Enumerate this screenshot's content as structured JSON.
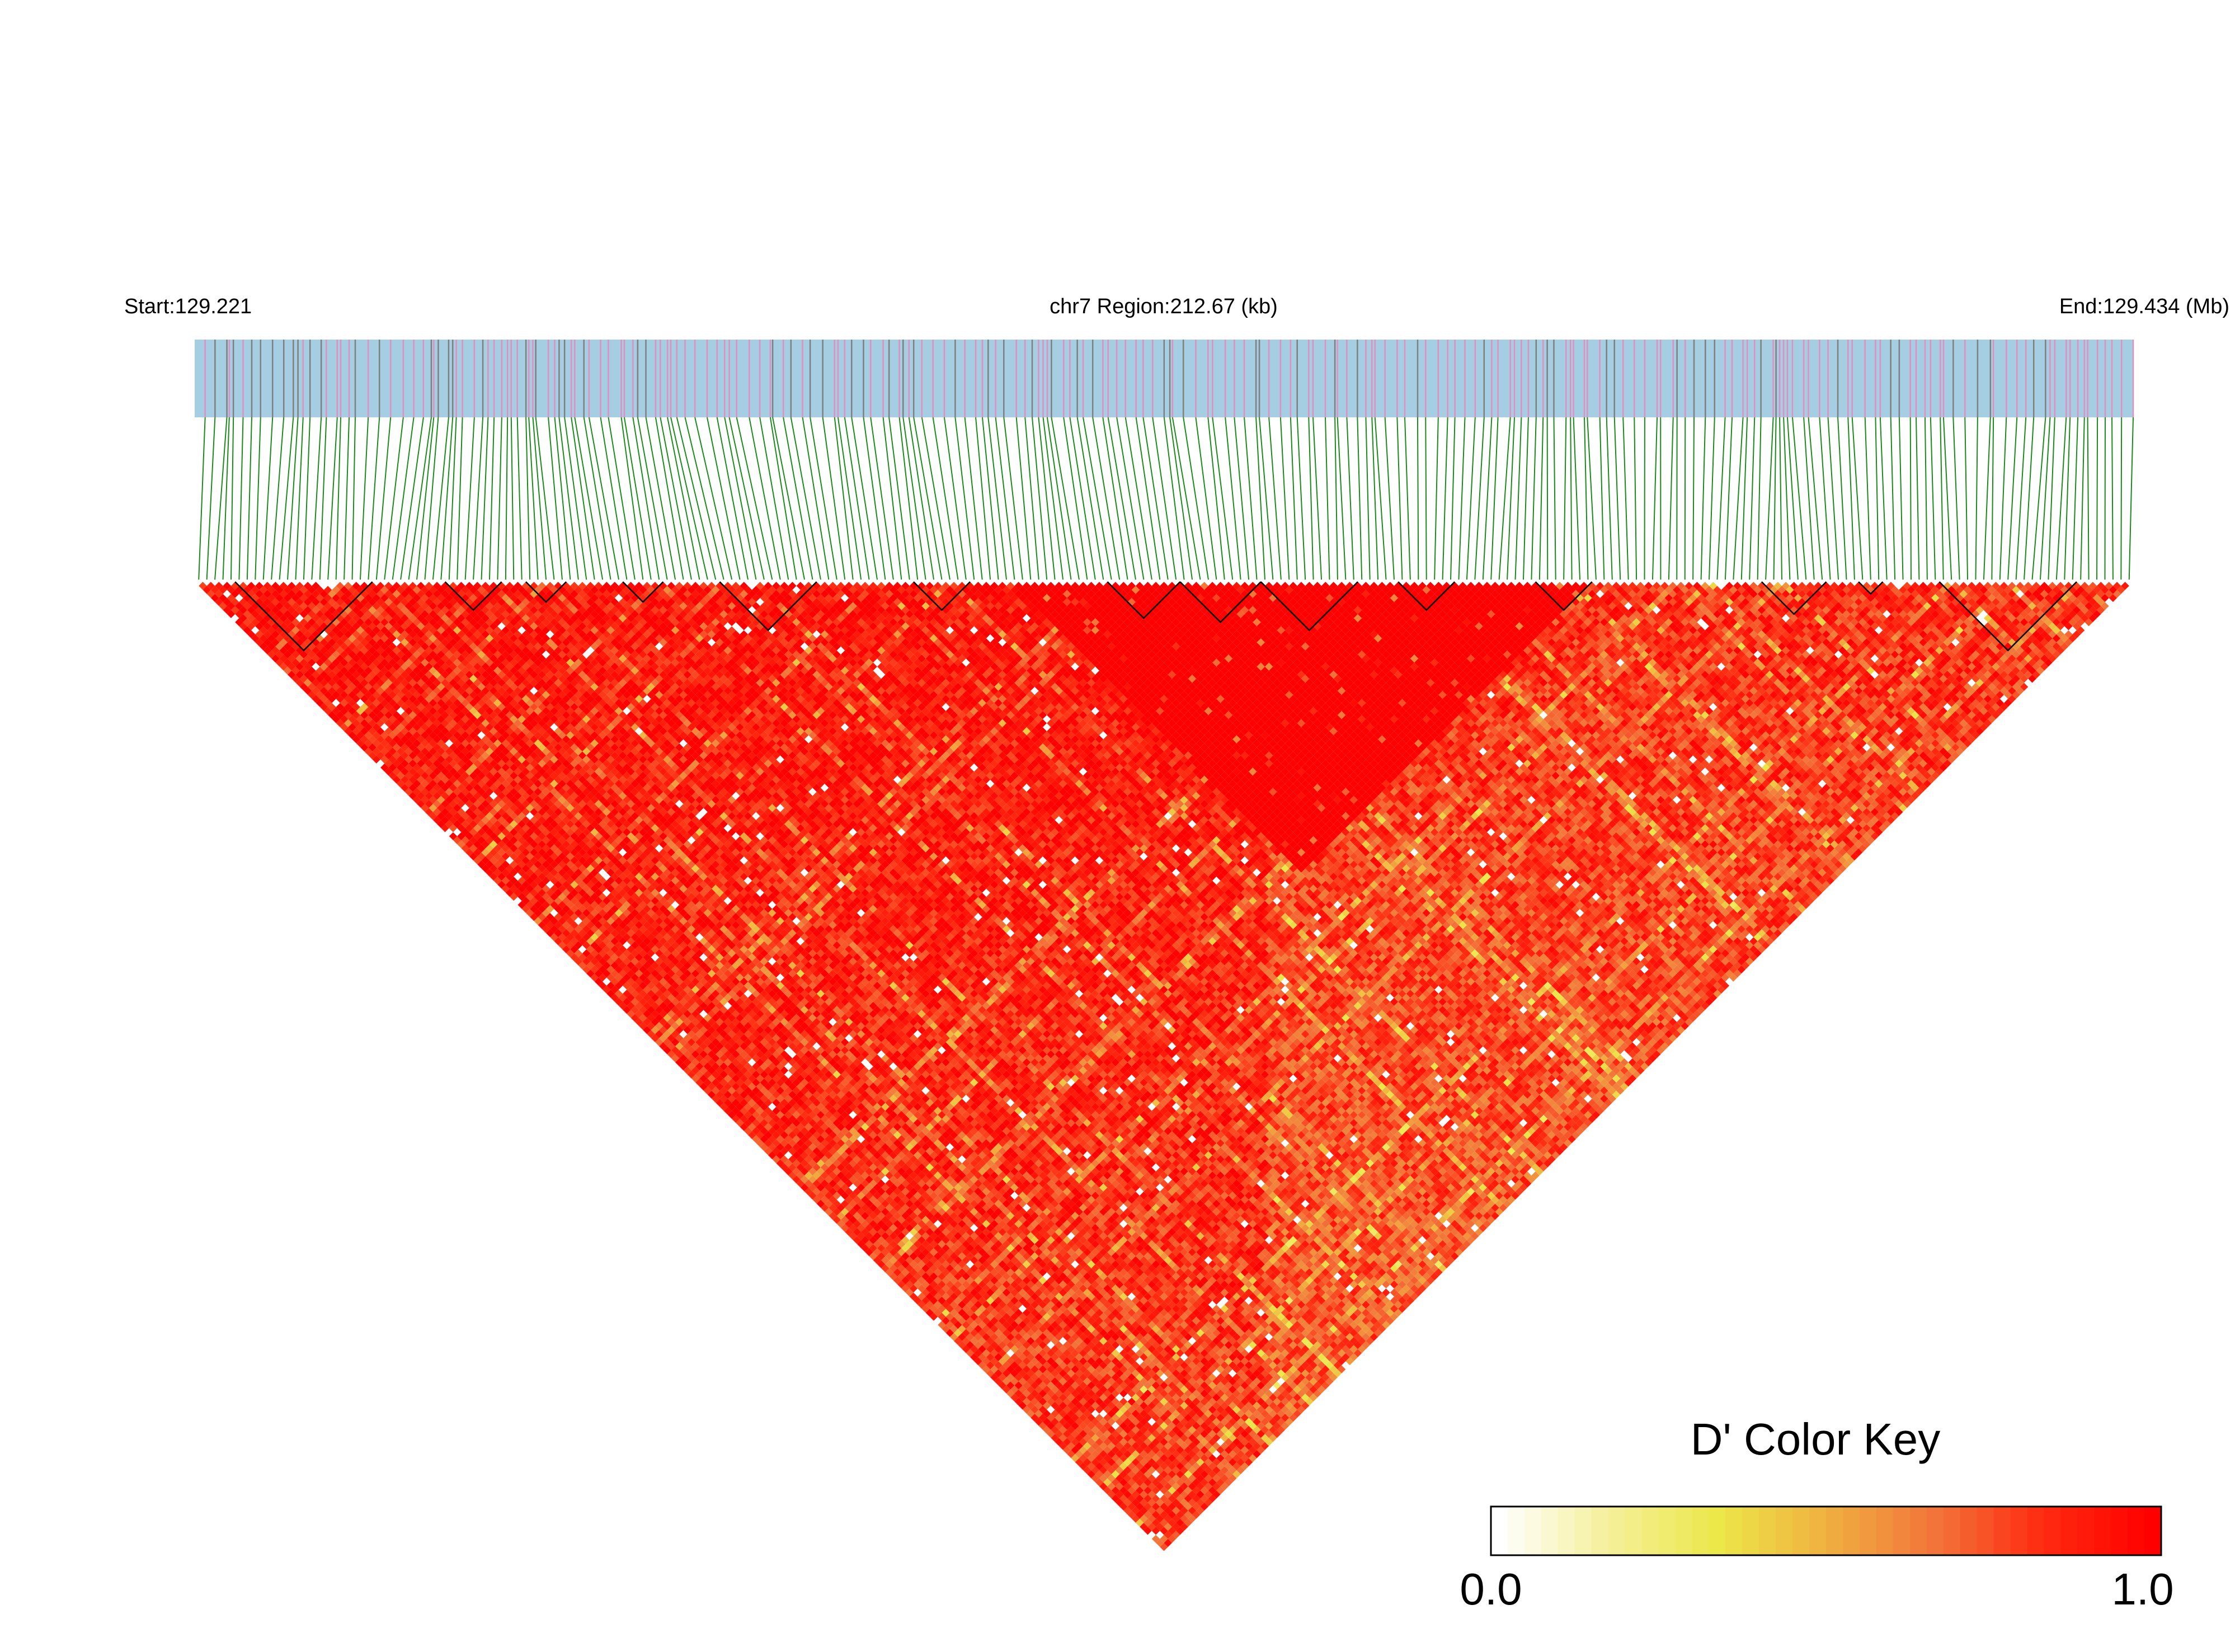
{
  "header": {
    "start_label": "Start:129.221",
    "region_label": "chr7 Region:212.67 (kb)",
    "end_label": "End:129.434 (Mb)"
  },
  "color_key": {
    "title": "D' Color Key",
    "min_label": "0.0",
    "max_label": "1.0",
    "stops": [
      "#ffffff",
      "#f5f09a",
      "#ece84a",
      "#f0b040",
      "#f2743a",
      "#ff2a10",
      "#ff0000"
    ]
  },
  "chart_data": {
    "type": "heatmap",
    "description_of_values": "pairwise linkage disequilibrium D' between SNPs (upper triangle, rotated 45°)",
    "chromosome": "chr7",
    "region_start_mb": 129.221,
    "region_end_mb": 129.434,
    "region_size_kb": 212.67,
    "value_range": [
      0.0,
      1.0
    ],
    "colors": {
      "track_background": "#a6cee3",
      "snp_tick_pink": "#e08fc0",
      "snp_tick_gray": "#7f7f7f",
      "connector_lines": "#1a8a1a",
      "block_outline": "#000000"
    },
    "haplotype_blocks_fraction": [
      [
        0.02,
        0.09
      ],
      [
        0.13,
        0.16
      ],
      [
        0.17,
        0.19
      ],
      [
        0.22,
        0.24
      ],
      [
        0.27,
        0.32
      ],
      [
        0.37,
        0.4
      ],
      [
        0.47,
        0.51
      ],
      [
        0.51,
        0.55
      ],
      [
        0.55,
        0.6
      ],
      [
        0.62,
        0.65
      ],
      [
        0.69,
        0.72
      ],
      [
        0.81,
        0.84
      ],
      [
        0.86,
        0.87
      ],
      [
        0.9,
        0.97
      ]
    ]
  }
}
